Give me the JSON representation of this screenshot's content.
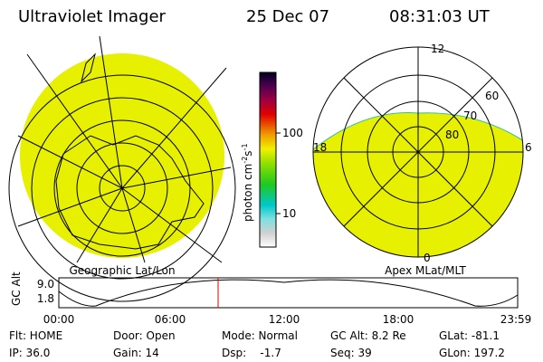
{
  "header": {
    "title": "Ultraviolet Imager",
    "date": "25 Dec 07",
    "time": "08:31:03 UT"
  },
  "colorbar": {
    "unit": [
      "photon cm",
      "-2",
      "s",
      "-1"
    ],
    "ticks": [
      "100",
      "10"
    ]
  },
  "left_panel": {
    "label": "Geographic Lat/Lon"
  },
  "right_panel": {
    "label": "Apex MLat/MLT",
    "mlt_labels": [
      "12",
      "18",
      "6",
      "0"
    ],
    "mlat_labels": [
      "60",
      "70",
      "80"
    ]
  },
  "altitude_plot": {
    "axis_label": "GC Alt",
    "yticks": [
      "9.0",
      "1.8"
    ],
    "xticks": [
      "00:00",
      "06:00",
      "12:00",
      "18:00",
      "23:59"
    ]
  },
  "status": {
    "rows": [
      [
        "Flt: HOME",
        "Door: Open",
        "Mode: Normal",
        "GC Alt: 8.2 Re",
        "GLat: -81.1"
      ],
      [
        "IP: 36.0",
        "Gain: 14",
        "Dsp:    -1.7",
        "Seq: 39",
        "GLon: 197.2"
      ]
    ]
  }
}
